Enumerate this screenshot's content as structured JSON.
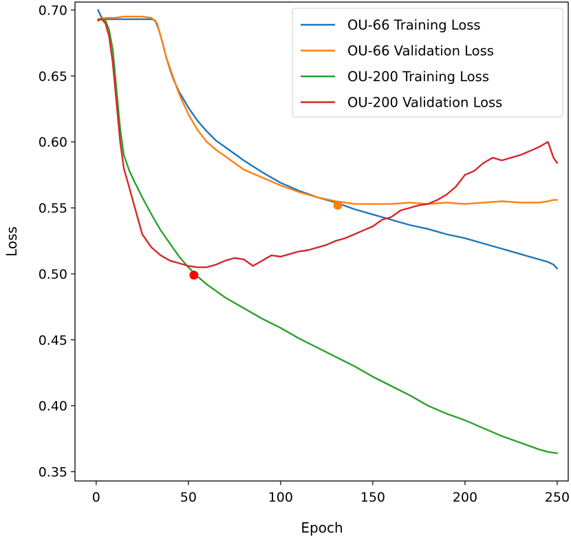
{
  "chart_data": {
    "type": "line",
    "title": "",
    "xlabel": "Epoch",
    "ylabel": "Loss",
    "xlim": [
      -11.5,
      256
    ],
    "ylim": [
      0.343,
      0.706
    ],
    "xticks": [
      0,
      50,
      100,
      150,
      200,
      250
    ],
    "xtick_labels": [
      "0",
      "50",
      "100",
      "150",
      "200",
      "250"
    ],
    "yticks": [
      0.35,
      0.4,
      0.45,
      0.5,
      0.55,
      0.6,
      0.65,
      0.7
    ],
    "ytick_labels": [
      "0.35",
      "0.40",
      "0.45",
      "0.50",
      "0.55",
      "0.60",
      "0.65",
      "0.70"
    ],
    "grid": false,
    "legend_position": "top-right",
    "series": [
      {
        "name": "OU-66 Training Loss",
        "color": "#1f77b4",
        "x": [
          1,
          3,
          5,
          10,
          15,
          20,
          25,
          30,
          32,
          34,
          36,
          38,
          40,
          42,
          45,
          50,
          55,
          60,
          65,
          70,
          75,
          80,
          90,
          100,
          110,
          120,
          130,
          140,
          150,
          160,
          170,
          180,
          190,
          200,
          210,
          220,
          230,
          240,
          245,
          248,
          250
        ],
        "y": [
          0.7,
          0.694,
          0.693,
          0.693,
          0.693,
          0.693,
          0.693,
          0.693,
          0.692,
          0.685,
          0.675,
          0.664,
          0.655,
          0.647,
          0.638,
          0.626,
          0.616,
          0.608,
          0.601,
          0.596,
          0.591,
          0.586,
          0.577,
          0.569,
          0.563,
          0.558,
          0.554,
          0.549,
          0.545,
          0.541,
          0.537,
          0.534,
          0.53,
          0.527,
          0.523,
          0.519,
          0.515,
          0.511,
          0.509,
          0.507,
          0.504
        ]
      },
      {
        "name": "OU-66 Validation Loss",
        "color": "#ff7f0e",
        "x": [
          1,
          5,
          10,
          15,
          20,
          25,
          30,
          33,
          36,
          38,
          40,
          42,
          44,
          46,
          48,
          50,
          55,
          60,
          65,
          70,
          75,
          80,
          90,
          100,
          110,
          120,
          130,
          140,
          150,
          160,
          170,
          180,
          190,
          200,
          210,
          220,
          230,
          240,
          245,
          248,
          250
        ],
        "y": [
          0.693,
          0.694,
          0.694,
          0.695,
          0.695,
          0.695,
          0.694,
          0.69,
          0.675,
          0.664,
          0.656,
          0.648,
          0.64,
          0.633,
          0.627,
          0.621,
          0.609,
          0.6,
          0.594,
          0.589,
          0.584,
          0.579,
          0.573,
          0.567,
          0.562,
          0.558,
          0.555,
          0.553,
          0.553,
          0.553,
          0.554,
          0.553,
          0.554,
          0.553,
          0.554,
          0.555,
          0.554,
          0.554,
          0.555,
          0.556,
          0.556
        ]
      },
      {
        "name": "OU-200 Training Loss",
        "color": "#2ca02c",
        "x": [
          1,
          3,
          5,
          7,
          9,
          11,
          13,
          15,
          18,
          20,
          25,
          30,
          35,
          40,
          45,
          50,
          55,
          60,
          70,
          80,
          90,
          100,
          110,
          120,
          130,
          140,
          150,
          160,
          170,
          180,
          190,
          200,
          210,
          220,
          230,
          240,
          245,
          250
        ],
        "y": [
          0.693,
          0.693,
          0.692,
          0.685,
          0.67,
          0.64,
          0.61,
          0.59,
          0.578,
          0.572,
          0.558,
          0.545,
          0.533,
          0.523,
          0.513,
          0.505,
          0.498,
          0.492,
          0.482,
          0.474,
          0.466,
          0.459,
          0.451,
          0.444,
          0.437,
          0.43,
          0.422,
          0.415,
          0.408,
          0.4,
          0.394,
          0.389,
          0.383,
          0.377,
          0.372,
          0.367,
          0.365,
          0.364
        ]
      },
      {
        "name": "OU-200 Validation Loss",
        "color": "#d62728",
        "x": [
          1,
          3,
          5,
          7,
          9,
          11,
          13,
          15,
          18,
          20,
          25,
          30,
          35,
          40,
          45,
          50,
          55,
          60,
          65,
          70,
          75,
          80,
          85,
          90,
          95,
          100,
          105,
          110,
          115,
          120,
          125,
          130,
          135,
          140,
          145,
          150,
          155,
          160,
          165,
          170,
          175,
          180,
          185,
          190,
          195,
          200,
          205,
          210,
          215,
          220,
          225,
          230,
          235,
          240,
          245,
          248,
          250
        ],
        "y": [
          0.692,
          0.693,
          0.69,
          0.68,
          0.66,
          0.63,
          0.6,
          0.58,
          0.565,
          0.555,
          0.53,
          0.52,
          0.514,
          0.51,
          0.508,
          0.506,
          0.505,
          0.505,
          0.507,
          0.51,
          0.512,
          0.511,
          0.506,
          0.51,
          0.514,
          0.513,
          0.515,
          0.517,
          0.518,
          0.52,
          0.522,
          0.525,
          0.527,
          0.53,
          0.533,
          0.536,
          0.541,
          0.543,
          0.548,
          0.55,
          0.552,
          0.553,
          0.556,
          0.56,
          0.566,
          0.575,
          0.578,
          0.584,
          0.588,
          0.586,
          0.588,
          0.59,
          0.593,
          0.596,
          0.6,
          0.588,
          0.584
        ]
      }
    ],
    "markers": [
      {
        "series": "OU-66 Validation Loss",
        "x": 131,
        "y": 0.552,
        "color": "#ff7f0e"
      },
      {
        "series": "OU-200 Validation Loss",
        "x": 53,
        "y": 0.499,
        "color": "#ff0000"
      }
    ]
  }
}
